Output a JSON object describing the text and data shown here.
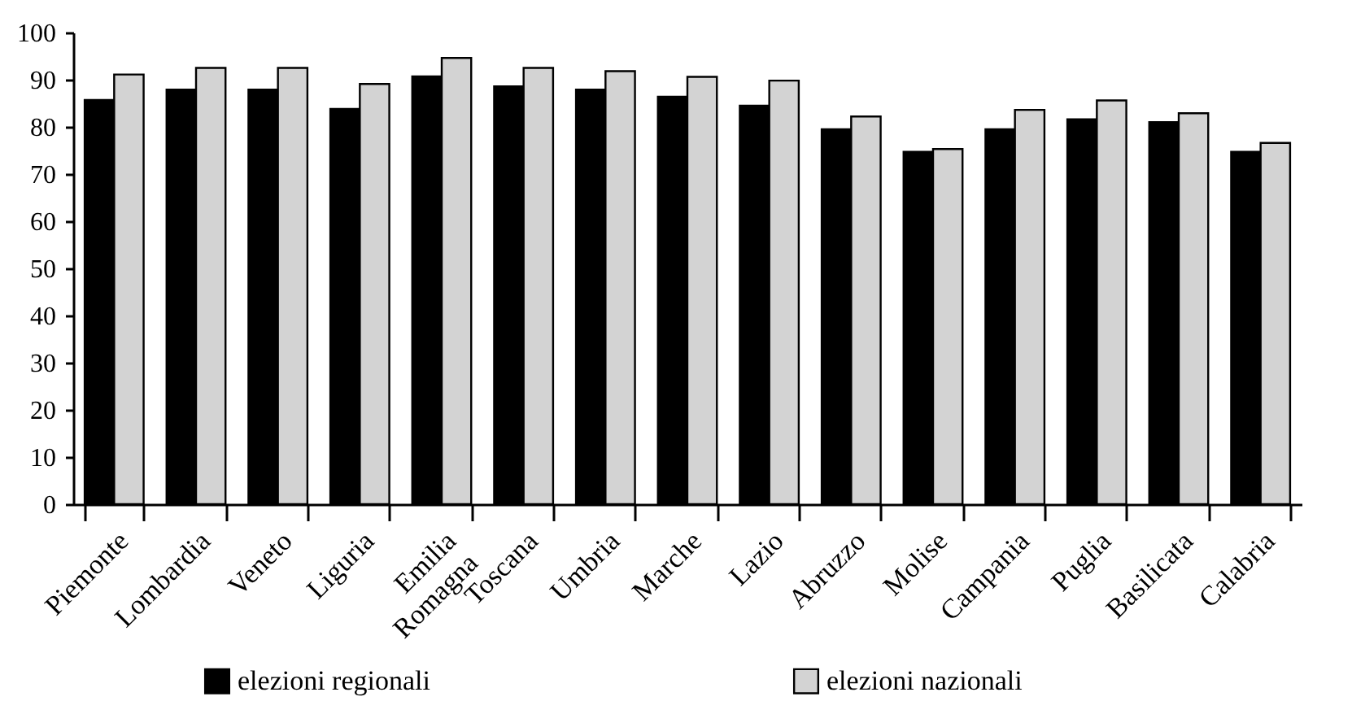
{
  "chart_data": {
    "type": "bar",
    "categories": [
      "Piemonte",
      "Lombardia",
      "Veneto",
      "Liguria",
      "Emilia Romagna",
      "Toscana",
      "Umbria",
      "Marche",
      "Lazio",
      "Abruzzo",
      "Molise",
      "Campania",
      "Puglia",
      "Basilicata",
      "Calabria"
    ],
    "series": [
      {
        "name": "elezioni regionali",
        "color": "#000000",
        "values": [
          85.7,
          87.9,
          87.9,
          83.8,
          90.7,
          88.6,
          87.9,
          86.4,
          84.5,
          79.5,
          74.7,
          79.5,
          81.6,
          81.0,
          74.7
        ]
      },
      {
        "name": "elezioni nazionali",
        "color": "#d3d3d3",
        "values": [
          91.1,
          92.5,
          92.5,
          89.1,
          94.6,
          92.5,
          91.8,
          90.6,
          89.8,
          82.2,
          75.3,
          83.6,
          85.6,
          82.9,
          76.6
        ]
      }
    ],
    "ylim": [
      0,
      100
    ],
    "yticks": [
      0,
      10,
      20,
      30,
      40,
      50,
      60,
      70,
      80,
      90,
      100
    ],
    "grid": false,
    "legend": "bottom"
  }
}
